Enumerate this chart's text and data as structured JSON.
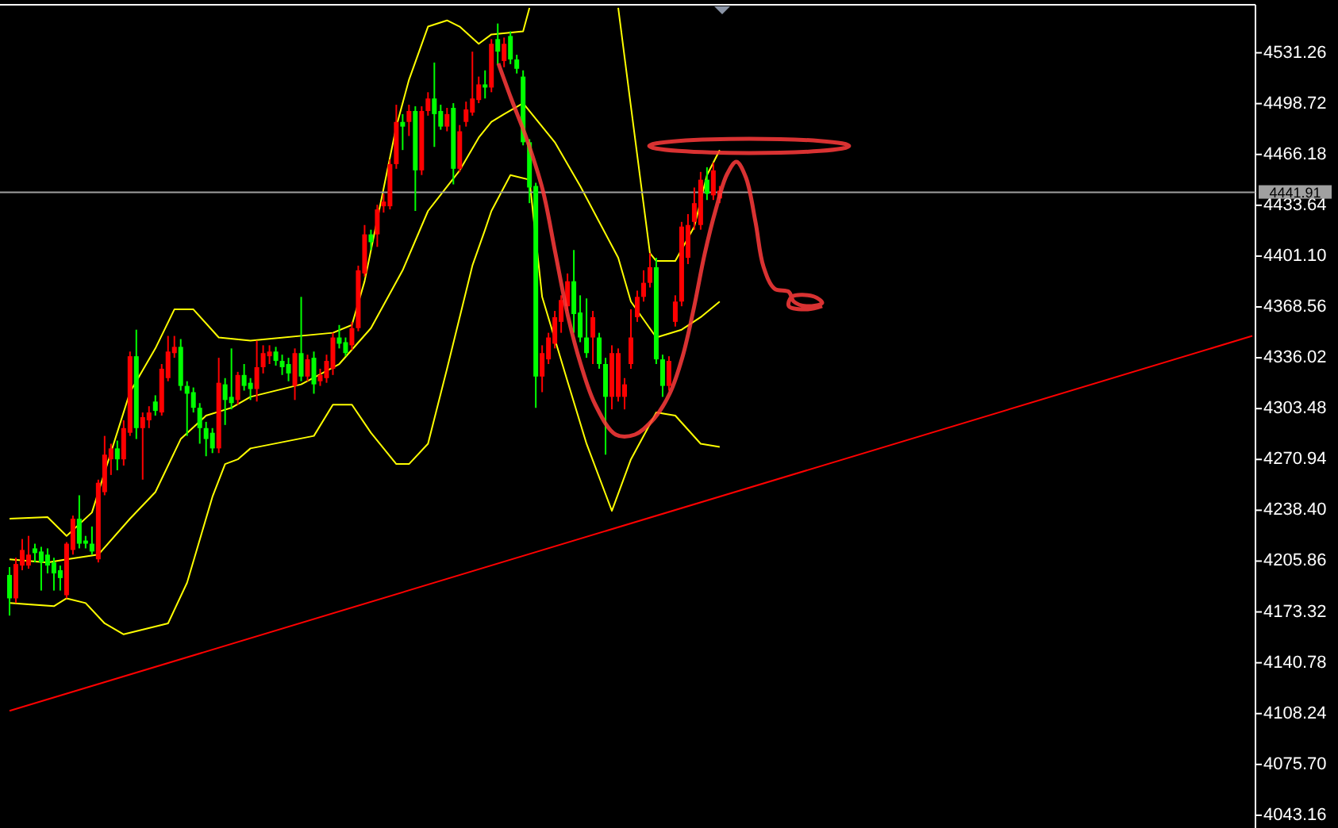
{
  "chart_data": {
    "type": "candlestick",
    "categories": [
      null,
      null,
      null,
      null,
      null,
      null,
      null,
      null,
      null,
      null,
      null,
      null,
      null,
      null,
      null,
      null,
      null,
      null,
      null,
      null,
      null,
      null,
      null,
      null,
      null,
      null,
      null,
      null,
      null,
      null,
      null,
      null,
      null,
      null,
      null,
      null,
      null,
      null,
      null,
      null,
      null,
      null,
      null,
      null,
      null,
      null,
      null,
      null,
      null,
      null,
      null,
      null,
      null,
      null,
      null,
      null,
      null,
      null,
      null,
      null,
      null,
      null,
      null,
      null,
      null,
      null,
      null,
      null,
      null,
      null,
      null,
      null,
      null,
      null,
      null,
      null,
      null,
      null,
      null,
      null,
      null,
      null,
      null,
      null,
      null,
      null,
      null,
      null,
      null,
      null,
      null,
      null,
      null,
      null,
      null,
      null,
      null,
      null,
      null,
      null,
      null,
      null,
      null,
      null,
      null,
      null,
      null,
      null,
      null,
      null,
      null,
      null,
      null,
      null,
      null,
      null,
      null,
      null,
      null,
      null,
      null,
      null,
      null,
      null,
      null,
      null,
      null,
      null,
      null,
      null,
      null,
      null,
      null,
      null,
      null,
      null,
      null,
      null,
      null,
      null,
      null,
      null,
      null,
      null,
      null,
      null,
      null,
      null,
      null,
      null,
      null,
      null,
      null,
      null,
      null,
      null,
      null,
      null,
      null,
      null,
      null,
      null,
      null,
      null,
      null,
      null,
      null,
      null,
      null,
      null,
      null,
      null,
      null,
      null,
      null,
      null,
      null,
      null,
      null,
      null,
      null,
      null,
      null,
      null,
      null,
      null,
      null,
      null,
      null,
      null,
      null,
      null,
      null,
      null,
      null,
      null,
      null
    ],
    "ohlc": [
      [
        4197,
        4202,
        4171,
        4182
      ],
      [
        4182,
        4208,
        4179,
        4204
      ],
      [
        4203,
        4220,
        4200,
        4213
      ],
      [
        4203,
        4222,
        4201,
        4210
      ],
      [
        4214,
        4217,
        4205,
        4211
      ],
      [
        4212,
        4215,
        4187,
        4205
      ],
      [
        4210,
        4214,
        4198,
        4203
      ],
      [
        4205,
        4208,
        4187,
        4198
      ],
      [
        4200,
        4203,
        4187,
        4195
      ],
      [
        4184,
        4218,
        4182,
        4217
      ],
      [
        4213,
        4235,
        4210,
        4233
      ],
      [
        4233,
        4248,
        4214,
        4217
      ],
      [
        4219,
        4222,
        4214,
        4217
      ],
      [
        4217,
        4228,
        4210,
        4212
      ],
      [
        4207,
        4258,
        4205,
        4256
      ],
      [
        4250,
        4286,
        4248,
        4274
      ],
      [
        4271,
        4281,
        4261,
        4278
      ],
      [
        4278,
        4283,
        4264,
        4271
      ],
      [
        4271,
        4296,
        4267,
        4291
      ],
      [
        4288,
        4340,
        4286,
        4337
      ],
      [
        4337,
        4354,
        4284,
        4291
      ],
      [
        4291,
        4301,
        4258,
        4298
      ],
      [
        4296,
        4305,
        4291,
        4301
      ],
      [
        4308,
        4312,
        4299,
        4302
      ],
      [
        4301,
        4332,
        4299,
        4329
      ],
      [
        4323,
        4350,
        4321,
        4340
      ],
      [
        4339,
        4350,
        4336,
        4343
      ],
      [
        4343,
        4348,
        4315,
        4318
      ],
      [
        4318,
        4321,
        4286,
        4313
      ],
      [
        4314,
        4317,
        4301,
        4304
      ],
      [
        4304,
        4307,
        4281,
        4291
      ],
      [
        4291,
        4295,
        4273,
        4284
      ],
      [
        4288,
        4291,
        4275,
        4278
      ],
      [
        4278,
        4336,
        4275,
        4320
      ],
      [
        4319,
        4323,
        4293,
        4309
      ],
      [
        4311,
        4342,
        4303,
        4307
      ],
      [
        4309,
        4327,
        4306,
        4325
      ],
      [
        4325,
        4332,
        4315,
        4318
      ],
      [
        4320,
        4323,
        4309,
        4316
      ],
      [
        4316,
        4347,
        4308,
        4330
      ],
      [
        4330,
        4344,
        4326,
        4339
      ],
      [
        4337,
        4344,
        4332,
        4340
      ],
      [
        4340,
        4343,
        4331,
        4334
      ],
      [
        4334,
        4338,
        4325,
        4330
      ],
      [
        4332,
        4336,
        4321,
        4326
      ],
      [
        4318,
        4342,
        4309,
        4339
      ],
      [
        4339,
        4375,
        4321,
        4324
      ],
      [
        4324,
        4338,
        4321,
        4335
      ],
      [
        4336,
        4340,
        4313,
        4319
      ],
      [
        4321,
        4329,
        4318,
        4325
      ],
      [
        4323,
        4338,
        4320,
        4334
      ],
      [
        4329,
        4352,
        4325,
        4349
      ],
      [
        4349,
        4357,
        4342,
        4345
      ],
      [
        4346,
        4349,
        4337,
        4339
      ],
      [
        4344,
        4359,
        4341,
        4355
      ],
      [
        4355,
        4395,
        4353,
        4392
      ],
      [
        4390,
        4421,
        4388,
        4415
      ],
      [
        4415,
        4418,
        4405,
        4410
      ],
      [
        4415,
        4434,
        4407,
        4431
      ],
      [
        4433,
        4441,
        4429,
        4436
      ],
      [
        4433,
        4463,
        4431,
        4460
      ],
      [
        4460,
        4498,
        4457,
        4487
      ],
      [
        4487,
        4492,
        4469,
        4484
      ],
      [
        4487,
        4498,
        4478,
        4494
      ],
      [
        4494,
        4497,
        4430,
        4456
      ],
      [
        4456,
        4497,
        4453,
        4494
      ],
      [
        4494,
        4506,
        4491,
        4502
      ],
      [
        4502,
        4525,
        4471,
        4492
      ],
      [
        4494,
        4498,
        4482,
        4484
      ],
      [
        4484,
        4496,
        4481,
        4492
      ],
      [
        4496,
        4499,
        4447,
        4457
      ],
      [
        4457,
        4485,
        4455,
        4481
      ],
      [
        4487,
        4500,
        4484,
        4495
      ],
      [
        4493,
        4532,
        4491,
        4502
      ],
      [
        4501,
        4516,
        4499,
        4511
      ],
      [
        4511,
        4520,
        4502,
        4509
      ],
      [
        4509,
        4540,
        4506,
        4537
      ],
      [
        4540,
        4550,
        4524,
        4532
      ],
      [
        4526,
        4541,
        4522,
        4537
      ],
      [
        4542,
        4545,
        4524,
        4527
      ],
      [
        4527,
        4530,
        4518,
        4521
      ],
      [
        4516,
        4520,
        4472,
        4474
      ],
      [
        4474,
        4476,
        4435,
        4445
      ],
      [
        4446,
        4448,
        4304,
        4324
      ],
      [
        4324,
        4344,
        4314,
        4339
      ],
      [
        4335,
        4352,
        4332,
        4349
      ],
      [
        4345,
        4366,
        4342,
        4362
      ],
      [
        4359,
        4376,
        4352,
        4373
      ],
      [
        4369,
        4390,
        4366,
        4385
      ],
      [
        4385,
        4405,
        4352,
        4364
      ],
      [
        4365,
        4376,
        4346,
        4349
      ],
      [
        4349,
        4374,
        4336,
        4339
      ],
      [
        4349,
        4366,
        4332,
        4362
      ],
      [
        4349,
        4352,
        4329,
        4332
      ],
      [
        4332,
        4336,
        4274,
        4311
      ],
      [
        4311,
        4344,
        4303,
        4339
      ],
      [
        4311,
        4342,
        4308,
        4339
      ],
      [
        4311,
        4323,
        4303,
        4319
      ],
      [
        4332,
        4367,
        4329,
        4349
      ],
      [
        4362,
        4379,
        4359,
        4375
      ],
      [
        4375,
        4392,
        4372,
        4384
      ],
      [
        4384,
        4403,
        4381,
        4394
      ],
      [
        4394,
        4400,
        4332,
        4335
      ],
      [
        4335,
        4338,
        4311,
        4318
      ],
      [
        4318,
        4337,
        4315,
        4334
      ],
      [
        4359,
        4376,
        4356,
        4372
      ],
      [
        4372,
        4423,
        4369,
        4420
      ],
      [
        4400,
        4428,
        4396,
        4421
      ],
      [
        4423,
        4445,
        4418,
        4435
      ],
      [
        4421,
        4455,
        4418,
        4450
      ],
      [
        4450,
        4458,
        4437,
        4441
      ],
      [
        4440,
        4461,
        4437,
        4456
      ],
      [
        4438,
        4446,
        4435,
        4443
      ],
      null,
      null,
      null,
      null,
      null,
      null,
      null,
      null,
      null,
      null,
      null,
      null,
      null,
      null,
      null,
      null,
      null,
      null,
      null,
      null,
      null,
      null,
      null,
      null,
      null,
      null,
      null,
      null,
      null,
      null,
      null,
      null,
      null,
      null,
      null,
      null,
      null,
      null,
      null,
      null,
      null,
      null,
      null,
      null,
      null,
      null,
      null,
      null,
      null,
      null,
      null,
      null,
      null,
      null,
      null,
      null,
      null,
      null,
      null,
      null,
      null,
      null,
      null,
      null,
      null,
      null,
      null,
      null,
      null,
      null,
      null,
      null,
      null,
      null,
      null,
      null,
      null,
      null,
      null,
      null,
      null,
      null,
      null,
      null
    ],
    "colors": [
      "#00ff00",
      "#ff0000",
      "#ff0000",
      "#ff0000",
      "#00ff00",
      "#00ff00",
      "#00ff00",
      "#00ff00",
      "#00ff00",
      "#ff0000",
      "#ff0000",
      "#00ff00",
      "#00ff00",
      "#00ff00",
      "#ff0000",
      "#ff0000",
      "#ff0000",
      "#00ff00",
      "#ff0000",
      "#ff0000",
      "#00ff00",
      "#ff0000",
      "#ff0000",
      "#00ff00",
      "#ff0000",
      "#ff0000",
      "#ff0000",
      "#00ff00",
      "#00ff00",
      "#00ff00",
      "#00ff00",
      "#00ff00",
      "#00ff00",
      "#ff0000",
      "#00ff00",
      "#00ff00",
      "#ff0000",
      "#00ff00",
      "#00ff00",
      "#ff0000",
      "#ff0000",
      "#ff0000",
      "#00ff00",
      "#00ff00",
      "#00ff00",
      "#ff0000",
      "#00ff00",
      "#ff0000",
      "#00ff00",
      "#ff0000",
      "#ff0000",
      "#ff0000",
      "#00ff00",
      "#00ff00",
      "#ff0000",
      "#ff0000",
      "#ff0000",
      "#00ff00",
      "#ff0000",
      "#ff0000",
      "#ff0000",
      "#ff0000",
      "#00ff00",
      "#ff0000",
      "#00ff00",
      "#ff0000",
      "#ff0000",
      "#00ff00",
      "#00ff00",
      "#ff0000",
      "#00ff00",
      "#ff0000",
      "#ff0000",
      "#ff0000",
      "#ff0000",
      "#00ff00",
      "#ff0000",
      "#00ff00",
      "#ff0000",
      "#00ff00",
      "#00ff00",
      "#00ff00",
      "#00ff00",
      "#00ff00",
      "#ff0000",
      "#ff0000",
      "#ff0000",
      "#ff0000",
      "#ff0000",
      "#00ff00",
      "#00ff00",
      "#00ff00",
      "#ff0000",
      "#00ff00",
      "#00ff00",
      "#ff0000",
      "#ff0000",
      "#ff0000",
      "#ff0000",
      "#ff0000",
      "#ff0000",
      "#ff0000",
      "#00ff00",
      "#00ff00",
      "#ff0000",
      "#ff0000",
      "#ff0000",
      "#ff0000",
      "#ff0000",
      "#ff0000",
      "#00ff00",
      "#ff0000",
      "#ff0000",
      null,
      null,
      null,
      null,
      null,
      null,
      null,
      null,
      null,
      null,
      null,
      null,
      null,
      null,
      null,
      null,
      null,
      null,
      null,
      null,
      null,
      null,
      null,
      null,
      null,
      null,
      null,
      null,
      null,
      null,
      null,
      null,
      null,
      null,
      null,
      null,
      null,
      null,
      null,
      null,
      null,
      null,
      null,
      null,
      null,
      null,
      null,
      null,
      null,
      null,
      null,
      null,
      null,
      null,
      null,
      null,
      null,
      null,
      null,
      null,
      null,
      null,
      null,
      null,
      null,
      null,
      null,
      null,
      null,
      null,
      null,
      null,
      null,
      null,
      null,
      null,
      null,
      null,
      null,
      null,
      null,
      null,
      null,
      null
    ],
    "series": [
      {
        "type": "line",
        "color": "#ffff00",
        "values": [
          4233,
          null,
          null,
          null,
          null,
          null,
          4234,
          null,
          null,
          4222,
          null,
          null,
          null,
          4237,
          null,
          null,
          null,
          null,
          null,
          4314,
          null,
          null,
          null,
          4342,
          null,
          null,
          4367,
          null,
          null,
          4367,
          null,
          null,
          null,
          4349,
          null,
          null,
          null,
          null,
          4347,
          null,
          null,
          null,
          null,
          null,
          null,
          null,
          null,
          null,
          null,
          null,
          null,
          4352,
          null,
          null,
          4357,
          null,
          4385,
          null,
          null,
          null,
          null,
          4484,
          null,
          4514,
          null,
          null,
          4548,
          null,
          null,
          4552,
          null,
          4548,
          null,
          null,
          4537,
          null,
          4543,
          null,
          null,
          null,
          null,
          4545,
          4560,
          null,
          null,
          null,
          null,
          null,
          null,
          null,
          null,
          null,
          null,
          null,
          null,
          null,
          null,
          null,
          null,
          null,
          null,
          null,
          null,
          null,
          null,
          null,
          null,
          null,
          null,
          null,
          null,
          null,
          null,
          null,
          null,
          null,
          null,
          null,
          null,
          null,
          null,
          null,
          null,
          null,
          null,
          null,
          null,
          null,
          null,
          null,
          null,
          null,
          null,
          null,
          null,
          null,
          null,
          null,
          null,
          null,
          null,
          null,
          null,
          null,
          null,
          null,
          null,
          null,
          null,
          null,
          null,
          null,
          null,
          null,
          null,
          null,
          null,
          null,
          null,
          null,
          null,
          null,
          null,
          null,
          null,
          null,
          null,
          null,
          null,
          null,
          null,
          null,
          null,
          null,
          null,
          null,
          null,
          null,
          null,
          null,
          null,
          null,
          null,
          null,
          null,
          null,
          null,
          null,
          null,
          null,
          null,
          null,
          null,
          null,
          null,
          null,
          null
        ]
      },
      {
        "type": "line",
        "color": "#ffff00",
        "values": [
          null,
          null,
          null,
          null,
          null,
          null,
          null,
          null,
          null,
          null,
          null,
          null,
          null,
          null,
          null,
          null,
          null,
          null,
          null,
          null,
          null,
          null,
          null,
          null,
          null,
          null,
          null,
          null,
          null,
          null,
          null,
          null,
          null,
          null,
          null,
          null,
          null,
          null,
          null,
          null,
          null,
          null,
          null,
          null,
          null,
          null,
          null,
          null,
          null,
          null,
          null,
          null,
          null,
          null,
          null,
          null,
          null,
          null,
          null,
          null,
          null,
          null,
          null,
          null,
          null,
          null,
          null,
          null,
          null,
          null,
          null,
          null,
          null,
          null,
          null,
          null,
          null,
          null,
          null,
          null,
          null,
          null,
          null,
          null,
          null,
          null,
          null,
          null,
          null,
          null,
          null,
          null,
          null,
          null,
          null,
          null,
          4560,
          null,
          4497,
          null,
          null,
          4403,
          4398,
          null,
          null,
          4398,
          null,
          null,
          4420,
          null,
          4453,
          null,
          4469,
          null,
          null,
          null,
          null,
          null,
          null,
          null,
          null,
          null,
          null,
          null,
          null,
          null,
          null,
          null,
          null,
          null,
          null,
          null,
          null,
          null,
          null,
          null,
          null,
          null,
          null,
          null,
          null,
          null,
          null,
          null,
          null,
          null,
          null,
          null,
          null,
          null,
          null,
          null,
          null,
          null,
          null,
          null,
          null,
          null,
          null,
          null,
          null,
          null,
          null,
          null,
          null,
          null,
          null,
          null,
          null,
          null,
          null,
          null,
          null,
          null,
          null,
          null,
          null,
          null,
          null,
          null,
          null,
          null,
          null,
          null,
          null,
          null,
          null,
          null,
          null,
          null,
          null,
          null,
          null,
          null,
          null,
          null,
          null
        ]
      },
      {
        "type": "line",
        "color": "#ffff00",
        "values": [
          4207,
          null,
          null,
          null,
          null,
          null,
          4205,
          null,
          null,
          4207,
          null,
          null,
          null,
          null,
          4210,
          null,
          null,
          null,
          null,
          4233,
          null,
          null,
          null,
          4250,
          null,
          null,
          null,
          4284,
          null,
          null,
          null,
          4299,
          null,
          null,
          null,
          4304,
          null,
          null,
          4311,
          null,
          null,
          null,
          null,
          null,
          null,
          null,
          4319,
          null,
          null,
          null,
          null,
          null,
          4332,
          null,
          null,
          null,
          null,
          4355,
          null,
          null,
          null,
          null,
          4392,
          null,
          null,
          null,
          4430,
          null,
          null,
          null,
          null,
          4456,
          null,
          null,
          4477,
          null,
          4487,
          null,
          4492,
          null,
          null,
          4499,
          null,
          null,
          null,
          null,
          4474,
          null,
          null,
          null,
          4446,
          null,
          null,
          4423,
          null,
          null,
          4400,
          null,
          4372,
          null,
          null,
          null,
          4349,
          null,
          null,
          null,
          4354,
          null,
          null,
          4362,
          null,
          null,
          4372,
          null,
          null,
          null,
          null,
          null,
          null,
          null,
          null,
          null,
          null,
          null,
          null,
          null,
          null,
          null,
          null,
          null,
          null,
          null,
          null,
          null,
          null,
          null,
          null,
          null,
          null,
          null,
          null,
          null,
          null,
          null,
          null,
          null,
          null,
          null,
          null,
          null,
          null,
          null,
          null,
          null,
          null,
          null,
          null,
          null,
          null,
          null,
          null,
          null,
          null,
          null,
          null,
          null,
          null,
          null,
          null,
          null,
          null,
          null,
          null,
          null,
          null,
          null,
          null,
          null,
          null,
          null,
          null,
          null,
          null,
          null,
          null,
          null,
          null,
          null,
          null,
          null,
          null,
          null,
          null,
          null,
          null,
          null,
          null
        ]
      },
      {
        "type": "line",
        "color": "#ffff00",
        "values": [
          4179,
          null,
          null,
          null,
          null,
          null,
          null,
          4177,
          null,
          4182,
          null,
          null,
          4179,
          null,
          null,
          4166,
          null,
          null,
          4159,
          null,
          null,
          null,
          null,
          null,
          null,
          4166,
          null,
          null,
          4192,
          null,
          null,
          null,
          4247,
          null,
          4268,
          null,
          4271,
          null,
          4278,
          null,
          null,
          null,
          null,
          null,
          null,
          null,
          null,
          null,
          4286,
          null,
          null,
          4306,
          null,
          null,
          4306,
          null,
          null,
          4288,
          null,
          null,
          null,
          4268,
          null,
          4268,
          null,
          null,
          4281,
          null,
          null,
          4329,
          null,
          null,
          null,
          4395,
          null,
          4418,
          4430,
          null,
          null,
          4453,
          null,
          null,
          4450,
          null,
          4375,
          null,
          null,
          null,
          4321,
          null,
          null,
          4281,
          null,
          null,
          null,
          4238,
          null,
          null,
          4271,
          null,
          null,
          null,
          4301,
          null,
          null,
          4299,
          null,
          null,
          null,
          4281,
          null,
          null,
          4279,
          null,
          null,
          null,
          null,
          null,
          null,
          null,
          null,
          null,
          null,
          null,
          null,
          null,
          null,
          null,
          null,
          null,
          null,
          null,
          null,
          null,
          null,
          null,
          null,
          null,
          null,
          null,
          null,
          null,
          null,
          null,
          null,
          null,
          null,
          null,
          null,
          null,
          null,
          null,
          null,
          null,
          null,
          null,
          null,
          null,
          null,
          null,
          null,
          null,
          null,
          null,
          null,
          null,
          null,
          null,
          null,
          null,
          null,
          null,
          null,
          null,
          null,
          null,
          null,
          null,
          null,
          null,
          null,
          null,
          null,
          null,
          null,
          null,
          null,
          null,
          null,
          null,
          null,
          null,
          null,
          null,
          null,
          null,
          null
        ]
      },
      {
        "type": "line",
        "color": "#ff0000",
        "values": [
          4110,
          null,
          null,
          null,
          null,
          null,
          null,
          null,
          null,
          null,
          null,
          null,
          null,
          null,
          null,
          null,
          null,
          null,
          null,
          null,
          null,
          null,
          null,
          null,
          null,
          null,
          null,
          null,
          null,
          null,
          null,
          null,
          null,
          null,
          null,
          null,
          null,
          null,
          null,
          null,
          null,
          null,
          null,
          null,
          null,
          null,
          null,
          null,
          null,
          null,
          null,
          null,
          null,
          null,
          null,
          null,
          null,
          null,
          null,
          null,
          null,
          null,
          null,
          null,
          null,
          null,
          null,
          null,
          null,
          null,
          null,
          null,
          null,
          null,
          null,
          null,
          null,
          null,
          null,
          null,
          null,
          null,
          null,
          null,
          null,
          null,
          null,
          null,
          null,
          null,
          null,
          null,
          null,
          null,
          null,
          null,
          null,
          null,
          null,
          null,
          null,
          null,
          null,
          null,
          null,
          null,
          null,
          null,
          null,
          null,
          null,
          null,
          null,
          null,
          null,
          null,
          null,
          null,
          null,
          null,
          null,
          null,
          null,
          null,
          null,
          null,
          null,
          null,
          null,
          null,
          null,
          null,
          null,
          null,
          null,
          null,
          null,
          null,
          null,
          null,
          null,
          null,
          null,
          null,
          null,
          null,
          null,
          null,
          null,
          null,
          null,
          null,
          null,
          null,
          null,
          null,
          null,
          null,
          null,
          null,
          null,
          null,
          null,
          null,
          null,
          null,
          null,
          null,
          null,
          null,
          null,
          null,
          null,
          null,
          null,
          null,
          null,
          null,
          null,
          null,
          null,
          null,
          null,
          null,
          null,
          null,
          null,
          null,
          null,
          null,
          null,
          null,
          null,
          null,
          null,
          null,
          4350
        ]
      }
    ],
    "ref_lines": [
      {
        "axis": "y",
        "value": 4441.91,
        "label": "4441.91",
        "color": "#a0a0a0"
      }
    ],
    "ylim": [
      4035,
      4562
    ],
    "yticks": [
      4531.26,
      4498.72,
      4466.18,
      4433.64,
      {
        "value": 4401.1,
        "label": "4401.10"
      },
      4368.56,
      4336.02,
      4303.48,
      4270.94,
      {
        "value": 4238.4,
        "label": "4238.40"
      },
      4205.86,
      4173.32,
      4140.78,
      4108.24,
      {
        "value": 4075.7,
        "label": "4075.70"
      },
      4043.16
    ],
    "tick_labels": "y",
    "grid": false
  }
}
